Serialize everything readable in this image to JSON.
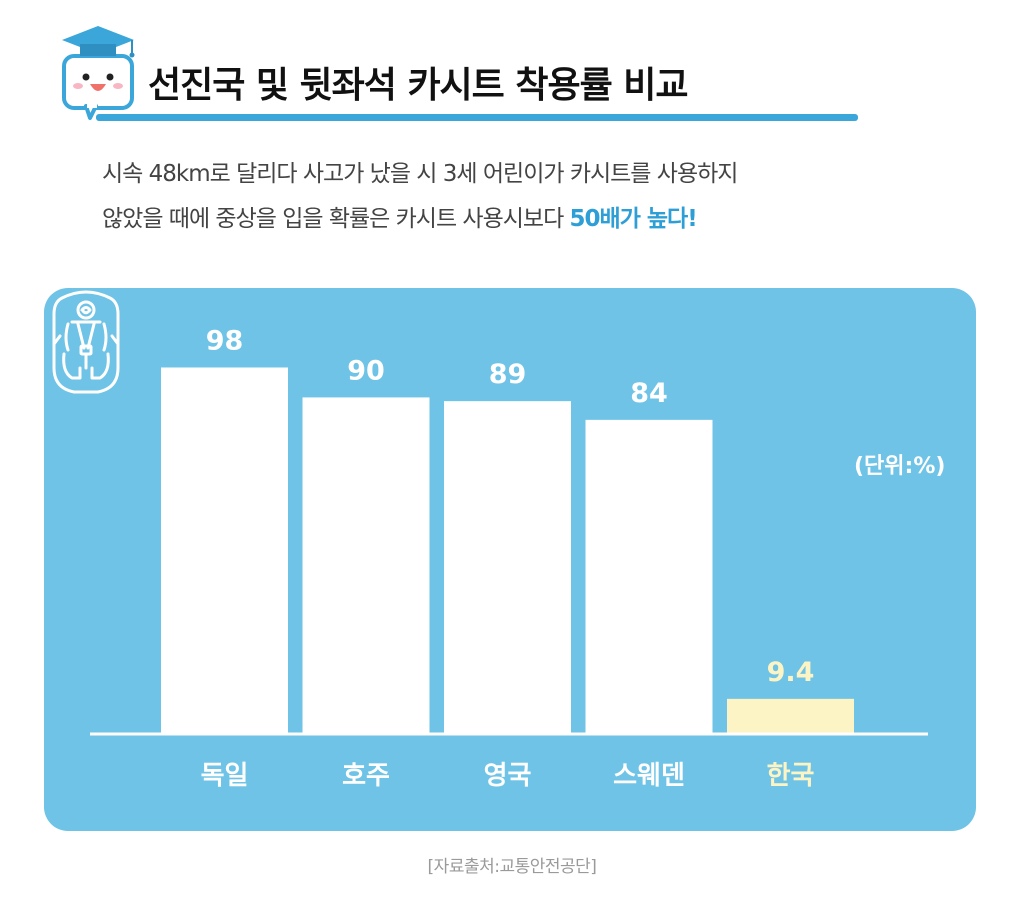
{
  "header": {
    "title": "선진국 및 뒷좌석 카시트 착용률 비교"
  },
  "description": {
    "line1": "시속 48km로 달리다 사고가 났을 시 3세 어린이가 카시트를 사용하지",
    "line2_prefix": "않았을 때에 중상을 입을 확률은 카시트 사용시보다 ",
    "line2_highlight": "50배가 높다!"
  },
  "chart_data": {
    "type": "bar",
    "categories": [
      "독일",
      "호주",
      "영국",
      "스웨덴",
      "한국"
    ],
    "values": [
      98,
      90,
      89,
      84,
      9.4
    ],
    "value_labels": [
      "98",
      "90",
      "89",
      "84",
      "9.4"
    ],
    "unit_label": "(단위:%)",
    "ylim": [
      0,
      100
    ],
    "highlight_category": "한국",
    "colors": {
      "background": "#6ec3e6",
      "bar": "#ffffff",
      "highlight_bar": "#fdf4c5",
      "highlight_text": "#fdf4c5",
      "text": "#ffffff"
    }
  },
  "source": "[자료출처:교통안전공단]",
  "icons": {
    "mascot": "graduation-cap-mascot-icon",
    "seat": "child-car-seat-icon"
  }
}
